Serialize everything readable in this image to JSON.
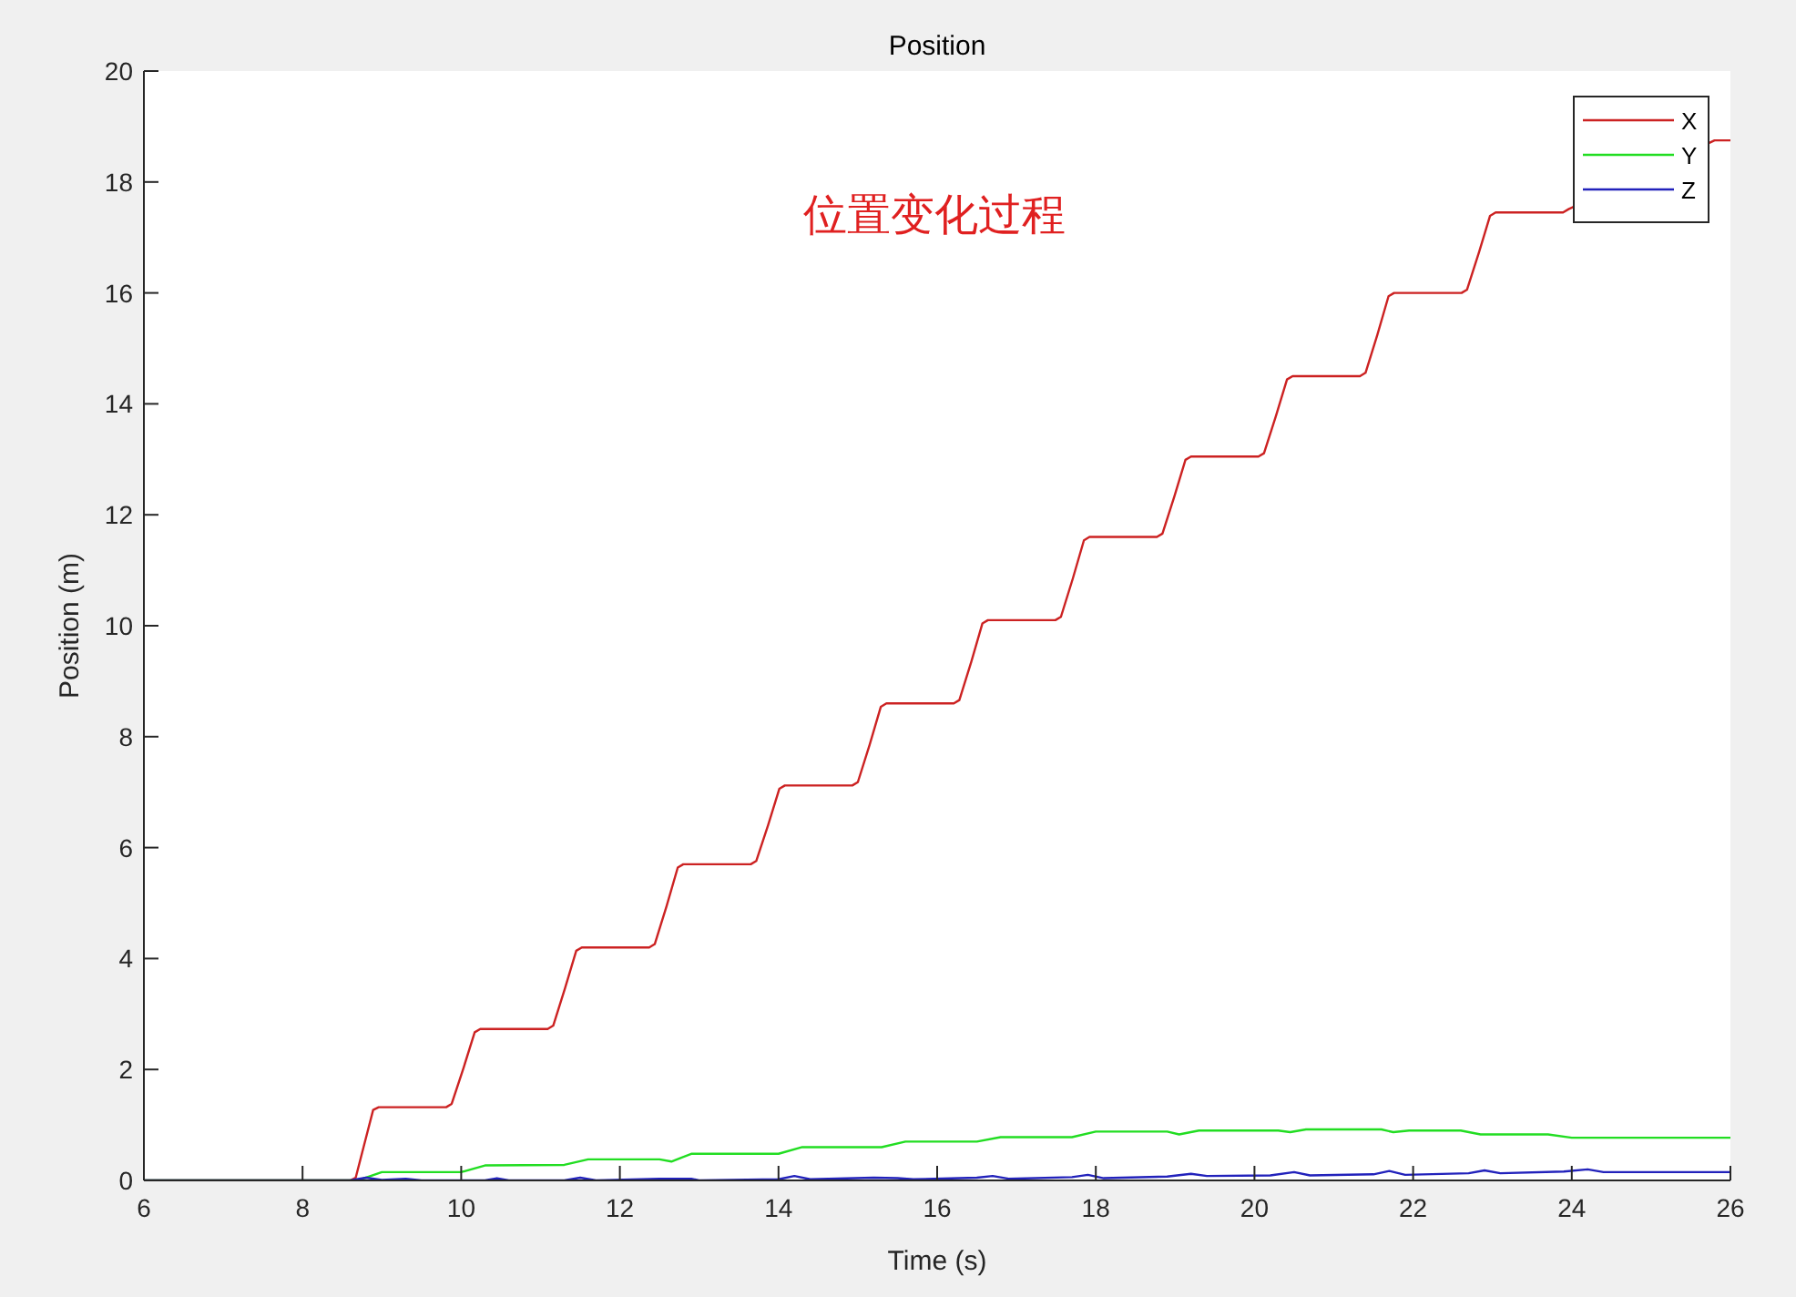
{
  "chart_data": {
    "type": "line",
    "title": "Position",
    "xlabel": "Time (s)",
    "ylabel": "Position (m)",
    "annotations": [
      "位置变化过程"
    ],
    "xlim": [
      6,
      26
    ],
    "xticks": [
      6,
      8,
      10,
      12,
      14,
      16,
      18,
      20,
      22,
      24,
      26
    ],
    "ylim": [
      0,
      20
    ],
    "yticks": [
      0,
      2,
      4,
      6,
      8,
      10,
      12,
      14,
      16,
      18,
      20
    ],
    "grid": false,
    "legend": "top right",
    "marker": "none",
    "line_style": "solid",
    "series": [
      {
        "name": "X",
        "color": "#cc2222",
        "x": [
          6,
          8.6,
          8.67,
          8.78,
          8.89,
          8.96,
          9.81,
          9.88,
          10.03,
          10.17,
          10.24,
          11.09,
          11.16,
          11.31,
          11.45,
          11.52,
          12.37,
          12.44,
          12.59,
          12.73,
          12.8,
          13.65,
          13.72,
          13.87,
          14.01,
          14.08,
          14.93,
          15.0,
          15.15,
          15.29,
          15.36,
          16.21,
          16.28,
          16.43,
          16.57,
          16.64,
          17.49,
          17.56,
          17.71,
          17.85,
          17.92,
          18.77,
          18.84,
          18.99,
          19.13,
          19.2,
          20.05,
          20.12,
          20.27,
          20.41,
          20.48,
          21.33,
          21.4,
          21.55,
          21.69,
          21.76,
          22.61,
          22.68,
          22.83,
          22.97,
          23.04,
          23.89,
          23.96,
          25.8,
          26
        ],
        "values": [
          0,
          0,
          0.05,
          0.66,
          1.27,
          1.32,
          1.32,
          1.38,
          2.03,
          2.67,
          2.73,
          2.73,
          2.79,
          3.47,
          4.14,
          4.2,
          4.2,
          4.26,
          4.95,
          5.64,
          5.7,
          5.7,
          5.76,
          6.41,
          7.06,
          7.12,
          7.12,
          7.18,
          7.86,
          8.54,
          8.6,
          8.6,
          8.66,
          9.35,
          10.04,
          10.1,
          10.1,
          10.16,
          10.85,
          11.54,
          11.6,
          11.6,
          11.66,
          12.33,
          12.99,
          13.05,
          13.05,
          13.11,
          13.78,
          14.44,
          14.5,
          14.5,
          14.56,
          15.25,
          15.94,
          16.0,
          16.0,
          16.06,
          16.73,
          17.39,
          17.45,
          17.45,
          17.51,
          18.75,
          18.75
        ]
      },
      {
        "name": "Y",
        "color": "#22dd22",
        "x": [
          6,
          8.7,
          9.0,
          10.0,
          10.3,
          11.3,
          11.6,
          12.5,
          12.65,
          12.9,
          14.0,
          14.3,
          15.3,
          15.6,
          16.5,
          16.8,
          17.7,
          18.0,
          18.9,
          19.05,
          19.3,
          20.3,
          20.45,
          20.65,
          21.6,
          21.75,
          21.95,
          22.6,
          22.85,
          23.7,
          24.0,
          26
        ],
        "values": [
          0,
          0,
          0.15,
          0.15,
          0.27,
          0.28,
          0.38,
          0.38,
          0.34,
          0.48,
          0.48,
          0.6,
          0.6,
          0.7,
          0.7,
          0.78,
          0.78,
          0.88,
          0.88,
          0.83,
          0.9,
          0.9,
          0.87,
          0.92,
          0.92,
          0.87,
          0.9,
          0.9,
          0.83,
          0.83,
          0.77,
          0.77
        ]
      },
      {
        "name": "Z",
        "color": "#2222bb",
        "x": [
          6,
          8.6,
          8.8,
          9.0,
          9.3,
          9.5,
          10.3,
          10.45,
          10.6,
          11.3,
          11.5,
          11.7,
          12.5,
          12.9,
          13.0,
          14.0,
          14.2,
          14.4,
          15.2,
          15.5,
          15.7,
          16.5,
          16.7,
          16.9,
          17.7,
          17.9,
          18.1,
          18.9,
          19.2,
          19.4,
          20.2,
          20.5,
          20.7,
          21.5,
          21.7,
          21.9,
          22.7,
          22.9,
          23.1,
          23.9,
          24.2,
          24.4,
          26
        ],
        "values": [
          0,
          0,
          0.05,
          0.01,
          0.03,
          0,
          0,
          0.04,
          0,
          0,
          0.05,
          0,
          0.03,
          0.03,
          0,
          0.02,
          0.08,
          0.02,
          0.05,
          0.04,
          0.02,
          0.05,
          0.08,
          0.03,
          0.06,
          0.1,
          0.04,
          0.07,
          0.12,
          0.08,
          0.09,
          0.15,
          0.09,
          0.11,
          0.17,
          0.1,
          0.13,
          0.18,
          0.13,
          0.16,
          0.2,
          0.15,
          0.15
        ]
      }
    ]
  }
}
